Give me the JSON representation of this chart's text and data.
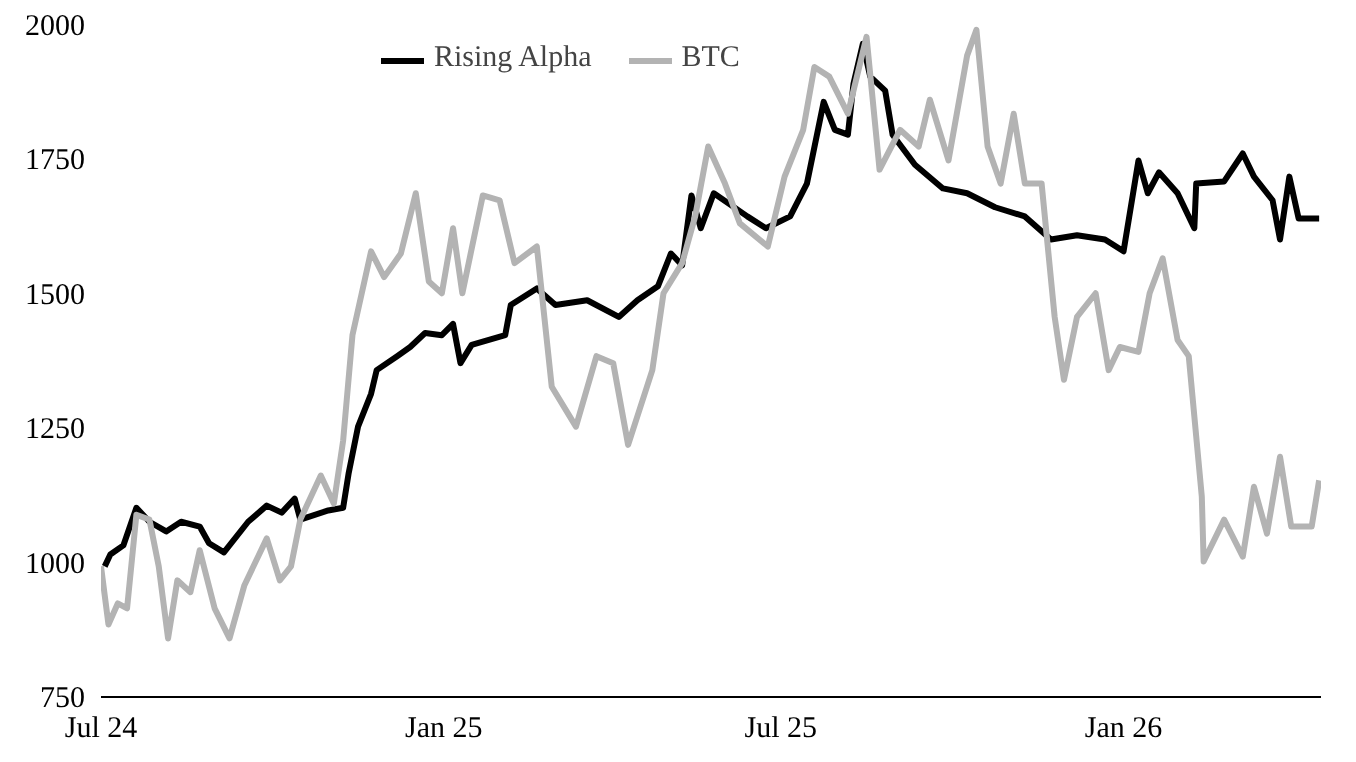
{
  "chart_data": {
    "type": "line",
    "legend": "top",
    "grid": false,
    "line_style": "solid",
    "marker": "none",
    "xlim": [
      "2024-07-01",
      "2026-04-17"
    ],
    "xticks": [
      {
        "value": "2024-07-01",
        "label": "Jul 24"
      },
      {
        "value": "2025-01-01",
        "label": "Jan 25"
      },
      {
        "value": "2025-07-01",
        "label": "Jul 25"
      },
      {
        "value": "2026-01-01",
        "label": "Jan 26"
      }
    ],
    "ylim": [
      750,
      2000
    ],
    "yticks": [
      750,
      1000,
      1250,
      1500,
      1750,
      2000
    ],
    "series": [
      {
        "name": "Rising Alpha",
        "color": "#000000",
        "x": [
          "2024-07-03",
          "2024-07-06",
          "2024-07-13",
          "2024-07-20",
          "2024-07-27",
          "2024-08-05",
          "2024-08-13",
          "2024-08-23",
          "2024-08-28",
          "2024-09-05",
          "2024-09-18",
          "2024-09-28",
          "2024-10-06",
          "2024-10-13",
          "2024-10-16",
          "2024-10-31",
          "2024-11-08",
          "2024-11-11",
          "2024-11-16",
          "2024-11-23",
          "2024-11-26",
          "2024-12-07",
          "2024-12-14",
          "2024-12-22",
          "2024-12-31",
          "2025-01-06",
          "2025-01-10",
          "2025-01-16",
          "2025-02-03",
          "2025-02-06",
          "2025-02-20",
          "2025-03-02",
          "2025-03-19",
          "2025-04-05",
          "2025-04-15",
          "2025-04-26",
          "2025-05-03",
          "2025-05-09",
          "2025-05-14",
          "2025-05-19",
          "2025-05-26",
          "2025-06-13",
          "2025-06-23",
          "2025-07-06",
          "2025-07-15",
          "2025-07-24",
          "2025-07-30",
          "2025-08-06",
          "2025-08-09",
          "2025-08-14",
          "2025-08-18",
          "2025-08-26",
          "2025-08-30",
          "2025-09-11",
          "2025-09-26",
          "2025-10-09",
          "2025-10-24",
          "2025-11-09",
          "2025-11-23",
          "2025-12-07",
          "2025-12-22",
          "2026-01-01",
          "2026-01-09",
          "2026-01-14",
          "2026-01-20",
          "2026-01-30",
          "2026-02-08",
          "2026-02-09",
          "2026-02-24",
          "2026-03-06",
          "2026-03-12",
          "2026-03-22",
          "2026-03-26",
          "2026-03-31",
          "2026-04-05",
          "2026-04-16"
        ],
        "values": [
          993,
          1015,
          1032,
          1102,
          1076,
          1058,
          1076,
          1067,
          1036,
          1019,
          1076,
          1106,
          1093,
          1119,
          1080,
          1097,
          1102,
          1167,
          1253,
          1314,
          1358,
          1384,
          1401,
          1427,
          1423,
          1444,
          1371,
          1405,
          1423,
          1479,
          1510,
          1479,
          1488,
          1457,
          1488,
          1514,
          1575,
          1553,
          1683,
          1622,
          1687,
          1644,
          1622,
          1644,
          1705,
          1857,
          1805,
          1796,
          1891,
          1965,
          1904,
          1878,
          1796,
          1740,
          1696,
          1687,
          1661,
          1644,
          1601,
          1609,
          1601,
          1579,
          1748,
          1687,
          1726,
          1687,
          1622,
          1705,
          1709,
          1761,
          1718,
          1674,
          1601,
          1718,
          1640,
          1640
        ]
      },
      {
        "name": "BTC",
        "color": "#b3b3b3",
        "x": [
          "2024-07-01",
          "2024-07-05",
          "2024-07-10",
          "2024-07-15",
          "2024-07-20",
          "2024-07-27",
          "2024-08-01",
          "2024-08-06",
          "2024-08-11",
          "2024-08-18",
          "2024-08-23",
          "2024-08-31",
          "2024-09-08",
          "2024-09-16",
          "2024-09-28",
          "2024-10-05",
          "2024-10-11",
          "2024-10-16",
          "2024-10-27",
          "2024-11-03",
          "2024-11-08",
          "2024-11-13",
          "2024-11-23",
          "2024-11-30",
          "2024-12-09",
          "2024-12-17",
          "2024-12-24",
          "2024-12-31",
          "2025-01-06",
          "2025-01-11",
          "2025-01-22",
          "2025-01-31",
          "2025-02-08",
          "2025-02-20",
          "2025-02-28",
          "2025-03-13",
          "2025-03-24",
          "2025-04-02",
          "2025-04-10",
          "2025-04-23",
          "2025-04-29",
          "2025-05-09",
          "2025-05-16",
          "2025-05-23",
          "2025-06-01",
          "2025-06-09",
          "2025-06-24",
          "2025-07-03",
          "2025-07-13",
          "2025-07-19",
          "2025-07-27",
          "2025-08-06",
          "2025-08-16",
          "2025-08-23",
          "2025-09-03",
          "2025-09-13",
          "2025-09-19",
          "2025-09-29",
          "2025-10-09",
          "2025-10-14",
          "2025-10-20",
          "2025-10-27",
          "2025-11-03",
          "2025-11-09",
          "2025-11-18",
          "2025-11-25",
          "2025-11-30",
          "2025-12-07",
          "2025-12-17",
          "2025-12-24",
          "2025-12-30",
          "2026-01-09",
          "2026-01-15",
          "2026-01-22",
          "2026-01-30",
          "2026-02-05",
          "2026-02-12",
          "2026-02-13",
          "2026-02-24",
          "2026-03-06",
          "2026-03-12",
          "2026-03-19",
          "2026-03-26",
          "2026-04-01",
          "2026-04-12",
          "2026-04-16"
        ],
        "values": [
          993,
          885,
          924,
          915,
          1089,
          1080,
          993,
          859,
          967,
          945,
          1023,
          915,
          859,
          958,
          1045,
          967,
          993,
          1080,
          1162,
          1110,
          1227,
          1423,
          1579,
          1531,
          1575,
          1687,
          1523,
          1501,
          1622,
          1501,
          1683,
          1674,
          1557,
          1588,
          1327,
          1253,
          1384,
          1371,
          1219,
          1358,
          1501,
          1557,
          1644,
          1774,
          1705,
          1631,
          1588,
          1718,
          1805,
          1922,
          1904,
          1835,
          1978,
          1731,
          1805,
          1774,
          1861,
          1748,
          1943,
          1991,
          1774,
          1705,
          1835,
          1705,
          1705,
          1457,
          1340,
          1457,
          1501,
          1358,
          1401,
          1392,
          1501,
          1566,
          1414,
          1384,
          1123,
          1002,
          1080,
          1011,
          1141,
          1054,
          1197,
          1067,
          1067,
          1153
        ]
      }
    ]
  }
}
